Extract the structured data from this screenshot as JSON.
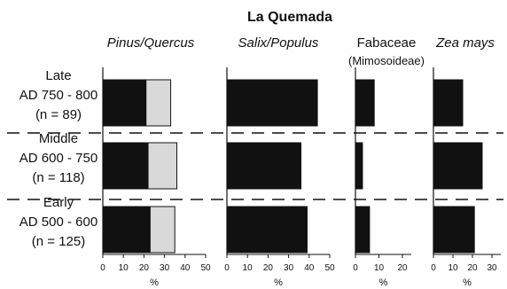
{
  "chart_data": {
    "type": "bar",
    "title": "La Quemada",
    "orientation": "horizontal",
    "stacked": true,
    "categories": [
      {
        "name": "Late",
        "range": "AD 750 - 800",
        "n": "(n = 89)"
      },
      {
        "name": "Middle",
        "range": "AD 600 - 750",
        "n": "(n = 118)"
      },
      {
        "name": "Early",
        "range": "AD 500 - 600",
        "n": "(n = 125)"
      }
    ],
    "panels": [
      {
        "title": "Pinus/Quercus",
        "subtitle": "",
        "italic": true,
        "xlabel": "%",
        "xlim": [
          0,
          55
        ],
        "ticks": [
          0,
          10,
          20,
          30,
          40,
          50
        ],
        "series": [
          {
            "values": [
              21,
              22,
              23
            ],
            "color": "#111111"
          },
          {
            "values": [
              12,
              14,
              12
            ],
            "color": "#d9d9d9"
          }
        ]
      },
      {
        "title": "Salix/Populus",
        "subtitle": "",
        "italic": true,
        "xlabel": "%",
        "xlim": [
          0,
          55
        ],
        "ticks": [
          0,
          10,
          20,
          30,
          40,
          50
        ],
        "series": [
          {
            "values": [
              44,
              36,
              39
            ],
            "color": "#111111"
          }
        ]
      },
      {
        "title": "Fabaceae",
        "subtitle": "(Mimosoideae)",
        "italic": false,
        "xlabel": "%",
        "xlim": [
          0,
          27
        ],
        "ticks": [
          0,
          10,
          20
        ],
        "series": [
          {
            "values": [
              8,
              3,
              6
            ],
            "color": "#111111"
          }
        ]
      },
      {
        "title": "Zea mays",
        "subtitle": "",
        "italic": true,
        "xlabel": "%",
        "xlim": [
          0,
          36
        ],
        "ticks": [
          0,
          10,
          20,
          30
        ],
        "series": [
          {
            "values": [
              15,
              25,
              21
            ],
            "color": "#111111"
          }
        ]
      }
    ],
    "grid": false,
    "legend": "none"
  }
}
